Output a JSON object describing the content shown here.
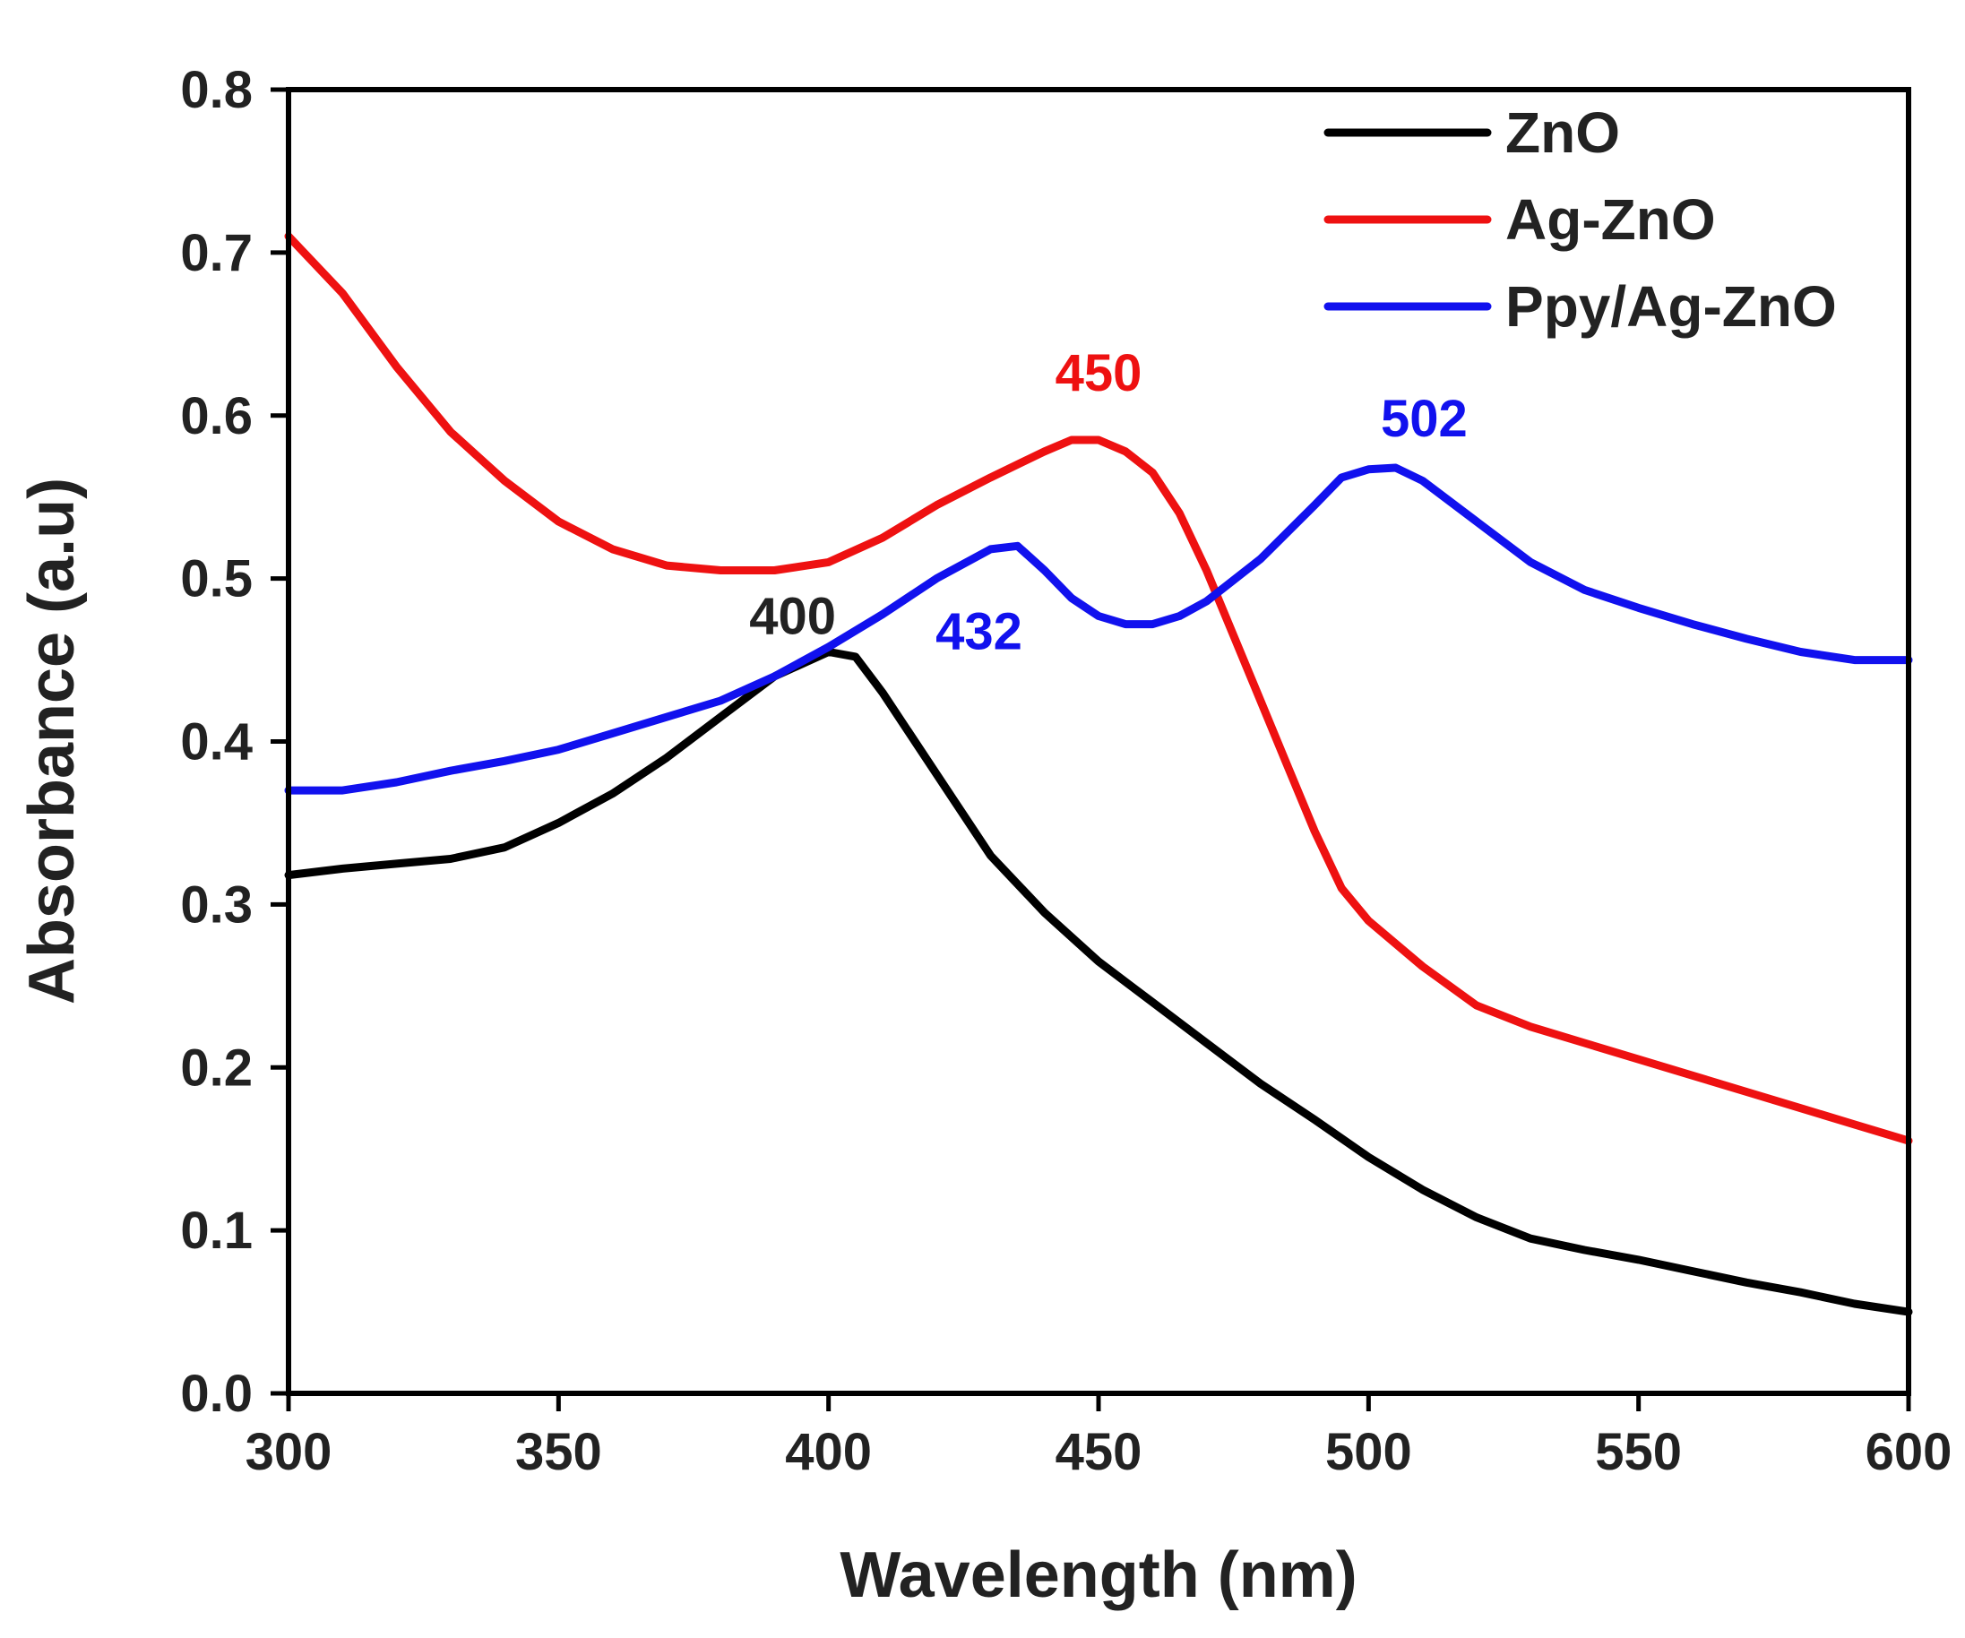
{
  "chart_data": {
    "type": "line",
    "title": "",
    "xlabel": "Wavelength (nm)",
    "ylabel": "Absorbance (a.u)",
    "xlim": [
      300,
      600
    ],
    "ylim": [
      0.0,
      0.8
    ],
    "x_ticks": [
      300,
      350,
      400,
      450,
      500,
      550,
      600
    ],
    "y_ticks": [
      0.0,
      0.1,
      0.2,
      0.3,
      0.4,
      0.5,
      0.6,
      0.7,
      0.8
    ],
    "x_tick_labels": [
      "300",
      "350",
      "400",
      "450",
      "500",
      "550",
      "600"
    ],
    "y_tick_labels": [
      "0.0",
      "0.1",
      "0.2",
      "0.3",
      "0.4",
      "0.5",
      "0.6",
      "0.7",
      "0.8"
    ],
    "grid": false,
    "legend_position": "top-right",
    "series": [
      {
        "name": "ZnO",
        "color": "#000000",
        "x": [
          300,
          310,
          320,
          330,
          340,
          350,
          360,
          370,
          380,
          390,
          400,
          405,
          410,
          420,
          430,
          440,
          450,
          460,
          470,
          480,
          490,
          500,
          510,
          520,
          530,
          540,
          550,
          560,
          570,
          580,
          590,
          600
        ],
        "y": [
          0.318,
          0.322,
          0.325,
          0.328,
          0.335,
          0.35,
          0.368,
          0.39,
          0.415,
          0.44,
          0.455,
          0.452,
          0.43,
          0.38,
          0.33,
          0.295,
          0.265,
          0.24,
          0.215,
          0.19,
          0.168,
          0.145,
          0.125,
          0.108,
          0.095,
          0.088,
          0.082,
          0.075,
          0.068,
          0.062,
          0.055,
          0.05
        ]
      },
      {
        "name": "Ag-ZnO",
        "color": "#ee1111",
        "x": [
          300,
          310,
          320,
          330,
          340,
          350,
          360,
          370,
          380,
          390,
          400,
          410,
          420,
          430,
          440,
          445,
          450,
          455,
          460,
          465,
          470,
          475,
          480,
          485,
          490,
          495,
          500,
          510,
          520,
          530,
          540,
          550,
          560,
          570,
          580,
          590,
          600
        ],
        "y": [
          0.71,
          0.675,
          0.63,
          0.59,
          0.56,
          0.535,
          0.518,
          0.508,
          0.505,
          0.505,
          0.51,
          0.525,
          0.545,
          0.562,
          0.578,
          0.585,
          0.585,
          0.578,
          0.565,
          0.54,
          0.505,
          0.465,
          0.425,
          0.385,
          0.345,
          0.31,
          0.29,
          0.262,
          0.238,
          0.225,
          0.215,
          0.205,
          0.195,
          0.185,
          0.175,
          0.165,
          0.155
        ]
      },
      {
        "name": "Ppy/Ag-ZnO",
        "color": "#1111ee",
        "x": [
          300,
          310,
          320,
          330,
          340,
          350,
          360,
          370,
          380,
          390,
          400,
          410,
          420,
          430,
          435,
          440,
          445,
          450,
          455,
          460,
          465,
          470,
          480,
          490,
          495,
          500,
          505,
          510,
          520,
          530,
          540,
          550,
          560,
          570,
          580,
          590,
          600
        ],
        "y": [
          0.37,
          0.37,
          0.375,
          0.382,
          0.388,
          0.395,
          0.405,
          0.415,
          0.425,
          0.44,
          0.458,
          0.478,
          0.5,
          0.518,
          0.52,
          0.505,
          0.488,
          0.477,
          0.472,
          0.472,
          0.477,
          0.486,
          0.512,
          0.545,
          0.562,
          0.567,
          0.568,
          0.56,
          0.535,
          0.51,
          0.493,
          0.482,
          0.472,
          0.463,
          0.455,
          0.45,
          0.45
        ]
      }
    ],
    "annotations": [
      {
        "text": "400",
        "x": 400,
        "y": 0.455,
        "color": "#222222"
      },
      {
        "text": "450",
        "x": 450,
        "y": 0.585,
        "color": "#ee1111"
      },
      {
        "text": "502",
        "x": 502,
        "y": 0.568,
        "color": "#1111ee"
      },
      {
        "text": "432",
        "x": 432,
        "y": 0.52,
        "color": "#1111ee"
      }
    ]
  }
}
